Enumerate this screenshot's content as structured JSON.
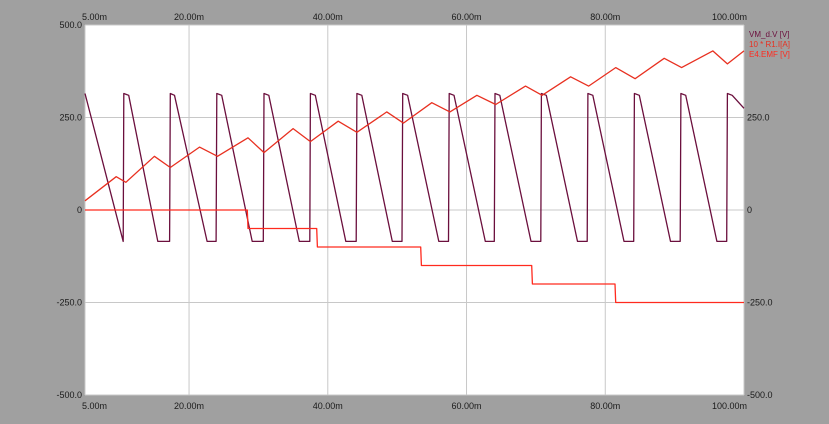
{
  "chart_data": {
    "type": "line",
    "x_tick_labels": [
      "5.00m",
      "20.00m",
      "40.00m",
      "60.00m",
      "80.00m",
      "100.00m"
    ],
    "x_ticks": [
      5,
      20,
      40,
      60,
      80,
      100
    ],
    "xlim": [
      5,
      100
    ],
    "y_tick_labels_left": [
      "500.0",
      "250.0",
      "0",
      "-250.0",
      "-500.0"
    ],
    "y_tick_labels_right": [
      "250.0",
      "0",
      "-250.0",
      "-500.0"
    ],
    "y_ticks_left": [
      500,
      250,
      0,
      -250,
      -500
    ],
    "y_ticks_right": [
      250,
      0,
      -250,
      -500
    ],
    "ylim": [
      -500,
      500
    ],
    "grid": true,
    "legend_position": "top-right",
    "series": [
      {
        "name": "VM_d.V [V]",
        "color": "#6b0f3d",
        "x": [
          5.0,
          10.5,
          10.6,
          11.3,
          15.5,
          17.2,
          17.3,
          17.9,
          22.6,
          23.9,
          24.0,
          24.7,
          29.1,
          30.7,
          30.8,
          31.5,
          35.9,
          37.4,
          37.5,
          38.2,
          42.6,
          44.1,
          44.2,
          44.9,
          49.3,
          50.7,
          50.8,
          51.5,
          56.0,
          57.4,
          57.5,
          58.2,
          62.7,
          64.0,
          64.1,
          64.8,
          69.3,
          70.7,
          70.8,
          71.5,
          76.0,
          77.4,
          77.5,
          78.2,
          82.7,
          84.1,
          84.2,
          84.9,
          89.4,
          90.8,
          90.9,
          91.6,
          96.1,
          97.5,
          97.6,
          98.3,
          100.0
        ],
        "y": [
          315,
          -85,
          315,
          310,
          -85,
          -85,
          315,
          310,
          -85,
          -85,
          315,
          310,
          -85,
          -85,
          315,
          310,
          -85,
          -85,
          315,
          310,
          -85,
          -85,
          315,
          310,
          -85,
          -85,
          315,
          310,
          -85,
          -85,
          315,
          310,
          -85,
          -85,
          315,
          310,
          -85,
          -85,
          315,
          310,
          -85,
          -85,
          315,
          310,
          -85,
          -85,
          315,
          310,
          -85,
          -85,
          315,
          310,
          -85,
          -85,
          315,
          310,
          275
        ]
      },
      {
        "name": "10 * R1.I[A]",
        "color": "#e83020",
        "x": [
          5.0,
          9.5,
          10.9,
          15.0,
          17.3,
          21.5,
          24.1,
          28.5,
          30.8,
          35.0,
          37.5,
          41.5,
          44.2,
          48.5,
          50.9,
          55.0,
          57.6,
          61.5,
          64.2,
          68.5,
          70.9,
          75.0,
          77.6,
          81.5,
          84.3,
          88.5,
          91.0,
          95.5,
          97.6,
          100.0
        ],
        "y": [
          25,
          90,
          75,
          145,
          115,
          170,
          145,
          195,
          155,
          220,
          185,
          240,
          210,
          265,
          235,
          290,
          265,
          310,
          285,
          335,
          310,
          360,
          335,
          385,
          355,
          410,
          385,
          430,
          395,
          430
        ]
      },
      {
        "name": "E4.EMF [V]",
        "color": "#ff2a1e",
        "x": [
          5.0,
          28.4,
          28.5,
          38.4,
          38.5,
          53.4,
          53.5,
          69.4,
          69.5,
          81.4,
          81.5,
          100.0
        ],
        "y": [
          0,
          0,
          -50,
          -50,
          -100,
          -100,
          -150,
          -150,
          -200,
          -200,
          -250,
          -250
        ]
      }
    ]
  }
}
